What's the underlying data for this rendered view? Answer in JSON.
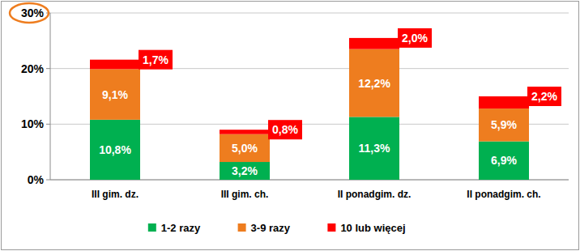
{
  "chart_data": {
    "type": "bar",
    "stacked": true,
    "data_labels": true,
    "grid": true,
    "legend": "bottom",
    "categories": [
      "III gim. dz.",
      "III gim. ch.",
      "II ponadgim. dz.",
      "II ponadgim. ch."
    ],
    "series": [
      {
        "name": "1-2 razy",
        "color": "#00b050",
        "values": [
          10.8,
          3.2,
          11.3,
          6.9
        ],
        "value_labels": [
          "10,8%",
          "3,2%",
          "11,3%",
          "6,9%"
        ]
      },
      {
        "name": "3-9 razy",
        "color": "#ee7d1f",
        "values": [
          9.1,
          5.0,
          12.2,
          5.9
        ],
        "value_labels": [
          "9,1%",
          "5,0%",
          "12,2%",
          "5,9%"
        ]
      },
      {
        "name": "10 lub więcej",
        "color": "#ff0000",
        "values": [
          1.7,
          0.8,
          2.0,
          2.2
        ],
        "value_labels": [
          "1,7%",
          "0,8%",
          "2,0%",
          "2,2%"
        ]
      }
    ],
    "ylim": [
      0,
      30
    ],
    "yticks": [
      {
        "value": 0,
        "label": "0%"
      },
      {
        "value": 10,
        "label": "10%"
      },
      {
        "value": 20,
        "label": "20%"
      },
      {
        "value": 30,
        "label": "30%"
      }
    ]
  }
}
